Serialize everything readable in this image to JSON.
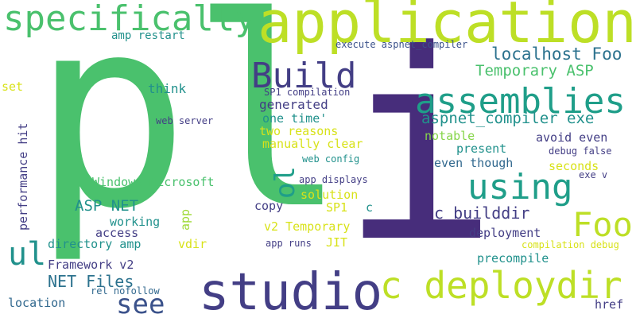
{
  "words": {
    "pl": "pl",
    "i": "i",
    "application": "application",
    "specifically": "specifically",
    "studio": "studio",
    "c_deploydir": "c deploydir",
    "using": "using",
    "assemblies": "assemblies",
    "build": "Build",
    "foo": "Foo",
    "ul": "ul",
    "see": "see",
    "ol": "ol",
    "localhost_foo": "localhost Foo",
    "temporary_asp": "Temporary ASP",
    "aspnet_compiler_exe": "aspnet_compiler exe",
    "asp_net": "ASP NET",
    "c_builddir": "c builddir",
    "net_files": "NET Files",
    "amp_restart": "amp restart",
    "execute_aspnet_compiler": "execute aspnet_compiler",
    "set": "set",
    "think": "think",
    "sp1_compilation": "SP1 compilation",
    "generated": "generated",
    "one_time": "one time'",
    "web_server": "web server",
    "two_reasons": "two reasons",
    "manually_clear": "manually clear",
    "notable": "notable",
    "avoid_even": "avoid even",
    "present": "present",
    "debug_false": "debug false",
    "even_though": "even though",
    "seconds": "seconds",
    "web_config": "web config",
    "exe_v": "exe v",
    "windows_microsoft": "Windows Microsoft",
    "app_displays": "app displays",
    "solution": "solution",
    "copy": "copy",
    "sp1": "SP1",
    "c": "c",
    "working": "working",
    "access": "access",
    "v2_temporary": "v2 Temporary",
    "deployment": "deployment",
    "directory_amp": "directory amp",
    "vdir": "vdir",
    "app_runs": "app runs",
    "jit": "JIT",
    "compilation_debug": "compilation debug",
    "framework_v2": "Framework v2",
    "precompile": "precompile",
    "rel_nofollow": "rel nofollow",
    "location": "location",
    "href": "href",
    "performance_hit": "performance hit",
    "app": "app"
  },
  "colors": {
    "background": "#ffffff",
    "purple": "#472d7b",
    "lime": "#bddf26",
    "green": "#3dbc74",
    "teal": "#1f9e89",
    "navy": "#3b528b"
  }
}
